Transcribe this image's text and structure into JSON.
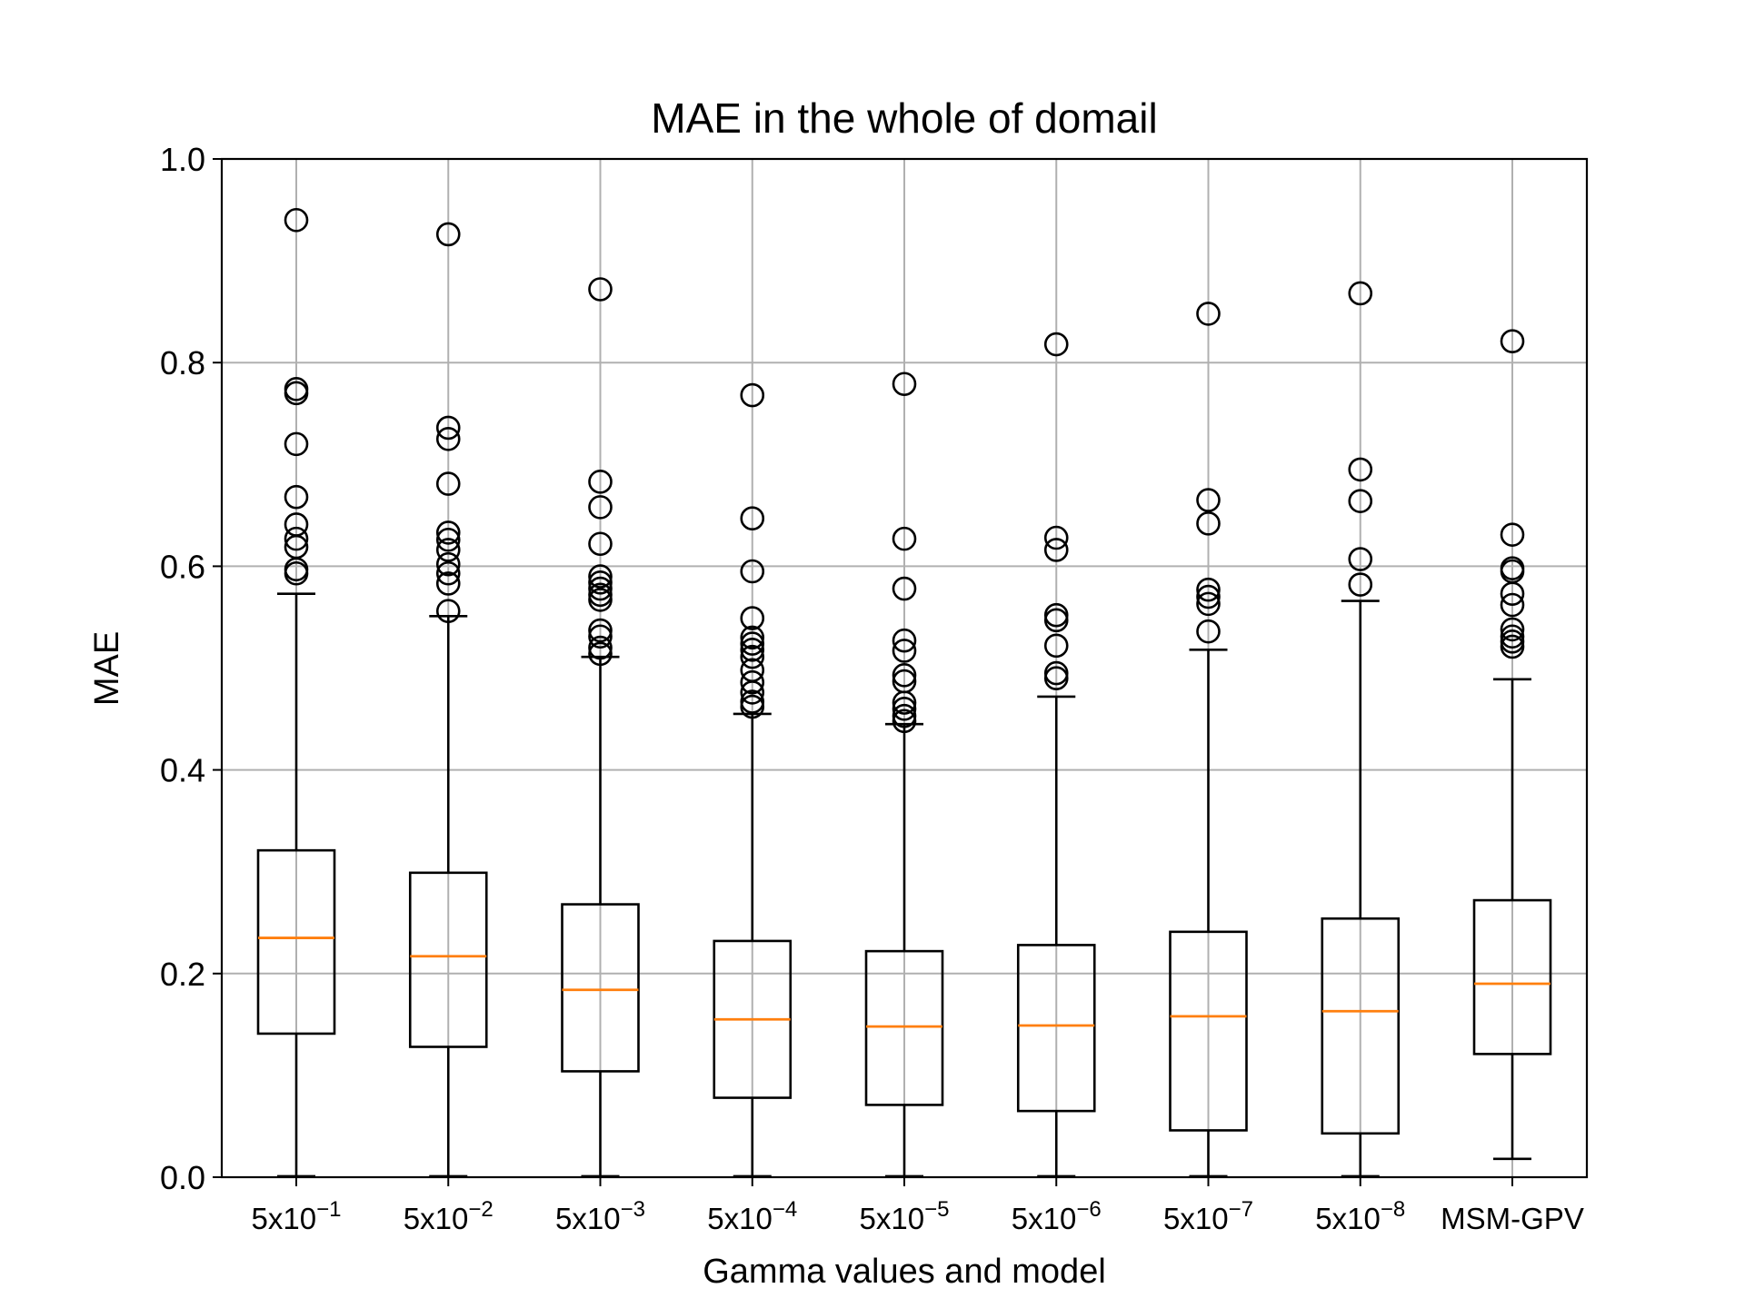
{
  "chart_data": {
    "type": "box",
    "title": "MAE in the whole of domail",
    "xlabel": "Gamma values and model",
    "ylabel": "MAE",
    "ylim": [
      0.0,
      1.0
    ],
    "yticks": [
      "0.0",
      "0.2",
      "0.4",
      "0.6",
      "0.8",
      "1.0"
    ],
    "grid": true,
    "categories": [
      {
        "base": "5x10",
        "exp": "−1"
      },
      {
        "base": "5x10",
        "exp": "−2"
      },
      {
        "base": "5x10",
        "exp": "−3"
      },
      {
        "base": "5x10",
        "exp": "−4"
      },
      {
        "base": "5x10",
        "exp": "−5"
      },
      {
        "base": "5x10",
        "exp": "−6"
      },
      {
        "base": "5x10",
        "exp": "−7"
      },
      {
        "base": "5x10",
        "exp": "−8"
      },
      {
        "base": "MSM-GPV",
        "exp": ""
      }
    ],
    "boxes": [
      {
        "whislo": 0.001,
        "q1": 0.141,
        "med": 0.235,
        "q3": 0.321,
        "whishi": 0.573,
        "fliers": [
          0.94,
          0.774,
          0.77,
          0.72,
          0.668,
          0.641,
          0.627,
          0.619,
          0.597,
          0.593
        ]
      },
      {
        "whislo": 0.001,
        "q1": 0.128,
        "med": 0.217,
        "q3": 0.299,
        "whishi": 0.551,
        "fliers": [
          0.926,
          0.736,
          0.725,
          0.681,
          0.633,
          0.626,
          0.616,
          0.602,
          0.593,
          0.583,
          0.556
        ]
      },
      {
        "whislo": 0.001,
        "q1": 0.104,
        "med": 0.184,
        "q3": 0.268,
        "whishi": 0.511,
        "fliers": [
          0.872,
          0.683,
          0.658,
          0.622,
          0.59,
          0.584,
          0.578,
          0.572,
          0.567,
          0.537,
          0.531,
          0.52,
          0.514
        ]
      },
      {
        "whislo": 0.001,
        "q1": 0.078,
        "med": 0.155,
        "q3": 0.232,
        "whishi": 0.455,
        "fliers": [
          0.768,
          0.647,
          0.595,
          0.549,
          0.53,
          0.524,
          0.518,
          0.511,
          0.498,
          0.486,
          0.476,
          0.467,
          0.462
        ]
      },
      {
        "whislo": 0.001,
        "q1": 0.071,
        "med": 0.148,
        "q3": 0.222,
        "whishi": 0.445,
        "fliers": [
          0.779,
          0.627,
          0.578,
          0.527,
          0.517,
          0.493,
          0.487,
          0.466,
          0.46,
          0.453,
          0.448
        ]
      },
      {
        "whislo": 0.001,
        "q1": 0.065,
        "med": 0.149,
        "q3": 0.228,
        "whishi": 0.472,
        "fliers": [
          0.818,
          0.628,
          0.616,
          0.552,
          0.547,
          0.522,
          0.495,
          0.49
        ]
      },
      {
        "whislo": 0.001,
        "q1": 0.046,
        "med": 0.158,
        "q3": 0.241,
        "whishi": 0.518,
        "fliers": [
          0.848,
          0.665,
          0.642,
          0.577,
          0.57,
          0.563,
          0.536
        ]
      },
      {
        "whislo": 0.001,
        "q1": 0.043,
        "med": 0.163,
        "q3": 0.254,
        "whishi": 0.566,
        "fliers": [
          0.868,
          0.695,
          0.664,
          0.607,
          0.582
        ]
      },
      {
        "whislo": 0.018,
        "q1": 0.121,
        "med": 0.19,
        "q3": 0.272,
        "whishi": 0.489,
        "fliers": [
          0.821,
          0.631,
          0.598,
          0.595,
          0.573,
          0.562,
          0.538,
          0.531,
          0.526,
          0.521
        ]
      }
    ],
    "colors": {
      "box": "#000000",
      "median": "#ff7f0e",
      "grid": "#b0b0b0",
      "flier": "#000000"
    }
  }
}
